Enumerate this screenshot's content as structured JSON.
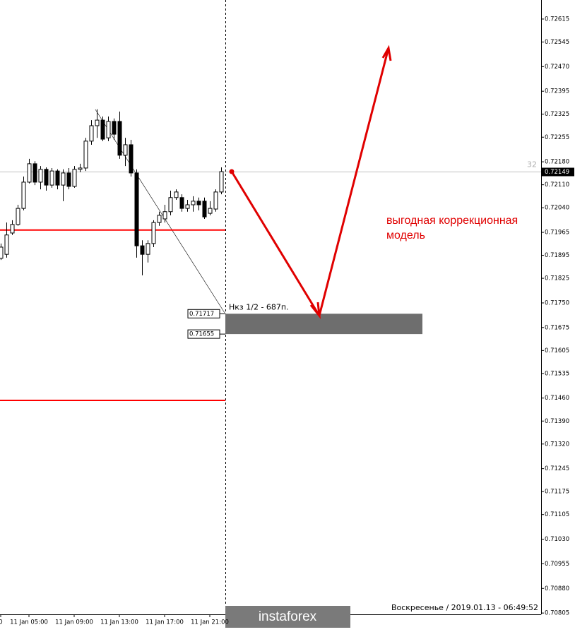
{
  "chart_data": {
    "type": "candlestick",
    "categories": [
      "0",
      null,
      null,
      null,
      null,
      "11 Jan 05:00",
      null,
      null,
      null,
      null,
      null,
      null,
      null,
      "11 Jan 09:00",
      null,
      null,
      null,
      null,
      null,
      null,
      null,
      "11 Jan 13:00",
      null,
      null,
      null,
      null,
      null,
      null,
      null,
      "11 Jan 17:00",
      null,
      null,
      null,
      null,
      null,
      null,
      null,
      "11 Jan 21:00",
      null,
      null
    ],
    "open": [
      0.71886,
      0.71898,
      0.71963,
      0.71989,
      0.72038,
      0.72118,
      0.72174,
      0.72118,
      0.72157,
      0.72109,
      0.72152,
      0.72109,
      0.72146,
      0.72105,
      0.72157,
      0.72161,
      0.72243,
      0.7229,
      0.72307,
      0.72253,
      0.72303,
      0.72303,
      0.722,
      0.72232,
      0.72146,
      0.71924,
      0.71898,
      0.71931,
      0.71995,
      0.72006,
      0.72028,
      0.72071,
      0.72071,
      0.72038,
      0.72049,
      0.7206,
      0.7206,
      0.72023,
      0.72036,
      0.72088
    ],
    "high": [
      0.71931,
      0.71995,
      0.72002,
      0.72049,
      0.72135,
      0.72189,
      0.72182,
      0.72167,
      0.72163,
      0.72161,
      0.72157,
      0.72157,
      0.72161,
      0.72167,
      0.72174,
      0.72253,
      0.72307,
      0.7234,
      0.72318,
      0.72318,
      0.72312,
      0.72333,
      0.72253,
      0.72247,
      0.72157,
      0.71941,
      0.71941,
      0.72002,
      0.72028,
      0.72049,
      0.72092,
      0.72096,
      0.72081,
      0.72064,
      0.72075,
      0.72071,
      0.72071,
      0.7206,
      0.72096,
      0.72163
    ],
    "low": [
      0.71881,
      0.71888,
      0.71957,
      0.71985,
      0.72032,
      0.72114,
      0.72109,
      0.72096,
      0.72092,
      0.72101,
      0.72096,
      0.7206,
      0.72096,
      0.72101,
      0.72148,
      0.72152,
      0.72232,
      0.72253,
      0.72243,
      0.72243,
      0.72247,
      0.72189,
      0.72167,
      0.72135,
      0.71888,
      0.71834,
      0.71873,
      0.7192,
      0.71985,
      0.71995,
      0.72017,
      0.72064,
      0.72028,
      0.72028,
      0.72028,
      0.72032,
      0.72006,
      0.72017,
      0.72028,
      0.72081
    ],
    "close": [
      0.7192,
      0.71957,
      0.71989,
      0.72038,
      0.72118,
      0.72174,
      0.72118,
      0.72157,
      0.72109,
      0.72152,
      0.72109,
      0.72146,
      0.72105,
      0.72157,
      0.72161,
      0.72243,
      0.7229,
      0.72307,
      0.72249,
      0.72303,
      0.72264,
      0.722,
      0.72232,
      0.72146,
      0.71924,
      0.71898,
      0.71931,
      0.71995,
      0.72017,
      0.72028,
      0.72071,
      0.72088,
      0.72038,
      0.72049,
      0.7206,
      0.72049,
      0.72012,
      0.72038,
      0.72088,
      0.7215
    ],
    "up_color": "#ffffff",
    "down_color": "#000000",
    "ylim": [
      0.70801,
      0.72673
    ],
    "yticks": [
      0.72615,
      0.72545,
      {
        "value": 0.7247,
        "label": "0.72470"
      },
      0.72395,
      0.72325,
      0.72255,
      {
        "value": 0.7218,
        "label": "0.72180"
      },
      {
        "value": 0.7211,
        "label": "0.72110"
      },
      {
        "value": 0.7204,
        "label": "0.72040"
      },
      0.71965,
      0.71895,
      0.71825,
      {
        "value": 0.7175,
        "label": "0.71750"
      },
      0.71675,
      0.71605,
      0.71535,
      {
        "value": 0.7146,
        "label": "0.71460"
      },
      {
        "value": 0.7139,
        "label": "0.71390"
      },
      {
        "value": 0.7132,
        "label": "0.71320"
      },
      0.71245,
      0.71175,
      0.71105,
      {
        "value": 0.7103,
        "label": "0.71030"
      },
      0.70955,
      {
        "value": 0.7088,
        "label": "0.70880"
      },
      0.70805
    ],
    "current_price": 0.72149,
    "spread_label": "32",
    "levels": [
      0.71972,
      0.71453
    ],
    "level_color": "#ff0000",
    "zone": {
      "high": 0.71717,
      "low": 0.71655,
      "label": "Нкз 1/2 - 687п.",
      "color": "#6e6e6e"
    },
    "annotation": [
      "выгодная коррекционная",
      "модель"
    ],
    "status": "Воскресенье  /  2019.01.13 - 06:49:52",
    "logo": "instaforex"
  }
}
